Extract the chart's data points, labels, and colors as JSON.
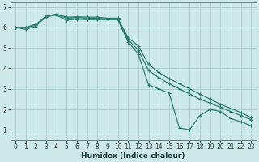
{
  "xlabel": "Humidex (Indice chaleur)",
  "bg_color": "#cce8e8",
  "line_color": "#2e7d6e",
  "grid_color": "#aacccc",
  "xlim": [
    -0.5,
    23.5
  ],
  "ylim": [
    0.5,
    7.2
  ],
  "xticks": [
    0,
    1,
    2,
    3,
    4,
    5,
    6,
    7,
    8,
    9,
    10,
    11,
    12,
    13,
    14,
    15,
    16,
    17,
    18,
    19,
    20,
    21,
    22,
    23
  ],
  "yticks": [
    1,
    2,
    3,
    4,
    5,
    6,
    7
  ],
  "series": [
    {
      "x": [
        0,
        1,
        2,
        3,
        4,
        5,
        6,
        7,
        8,
        9,
        10,
        11,
        12,
        13,
        14,
        15,
        16,
        17,
        18,
        19,
        20,
        21,
        22,
        23
      ],
      "y": [
        6.0,
        5.9,
        6.05,
        6.55,
        6.6,
        6.35,
        6.4,
        6.38,
        6.38,
        6.38,
        6.38,
        5.3,
        4.7,
        3.2,
        3.0,
        2.8,
        1.1,
        1.0,
        1.7,
        2.0,
        1.9,
        1.55,
        1.4,
        1.2
      ]
    },
    {
      "x": [
        0,
        1,
        2,
        3,
        4,
        5,
        6,
        7,
        8,
        9,
        10,
        11,
        12,
        13,
        14,
        15,
        16,
        17,
        18,
        19,
        20,
        21,
        22,
        23
      ],
      "y": [
        6.0,
        6.0,
        6.15,
        6.55,
        6.65,
        6.5,
        6.52,
        6.5,
        6.5,
        6.45,
        6.45,
        5.5,
        5.1,
        4.2,
        3.8,
        3.5,
        3.25,
        3.0,
        2.75,
        2.5,
        2.25,
        2.05,
        1.85,
        1.6
      ]
    },
    {
      "x": [
        0,
        1,
        2,
        3,
        4,
        5,
        6,
        7,
        8,
        9,
        10,
        11,
        12,
        13,
        14,
        15,
        16,
        17,
        18,
        19,
        20,
        21,
        22,
        23
      ],
      "y": [
        6.0,
        5.98,
        6.1,
        6.5,
        6.62,
        6.45,
        6.48,
        6.45,
        6.45,
        6.4,
        6.4,
        5.4,
        4.9,
        3.9,
        3.55,
        3.25,
        3.0,
        2.75,
        2.5,
        2.3,
        2.1,
        1.9,
        1.7,
        1.5
      ]
    }
  ]
}
